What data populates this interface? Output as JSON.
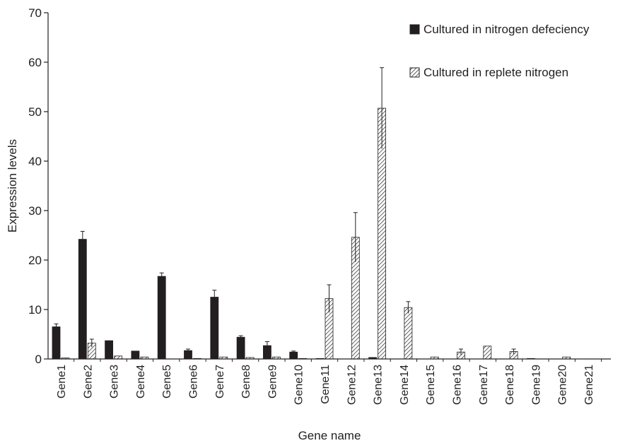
{
  "chart_data": {
    "type": "bar",
    "title": "",
    "xlabel": "Gene name",
    "ylabel": "Expression levels",
    "ylim": [
      0,
      70
    ],
    "yticks": [
      0,
      10,
      20,
      30,
      40,
      50,
      60,
      70
    ],
    "grid": false,
    "legend_position": "top-right",
    "categories": [
      "Gene1",
      "Gene2",
      "Gene3",
      "Gene4",
      "Gene5",
      "Gene6",
      "Gene7",
      "Gene8",
      "Gene9",
      "Gene10",
      "Gene11",
      "Gene12",
      "Gene13",
      "Gene14",
      "Gene15",
      "Gene16",
      "Gene17",
      "Gene18",
      "Gene19",
      "Gene20",
      "Gene21"
    ],
    "series": [
      {
        "name": "Cultured in nitrogen defeciency",
        "style": "solid",
        "color": "#231f20",
        "values": [
          6.5,
          24.2,
          3.7,
          1.6,
          16.7,
          1.7,
          12.5,
          4.4,
          2.7,
          1.4,
          0.1,
          0,
          0.3,
          0,
          0,
          0,
          0,
          0,
          0.1,
          0,
          0
        ],
        "errors": [
          0.6,
          1.6,
          0,
          0,
          0.7,
          0.3,
          1.4,
          0.3,
          0.8,
          0.2,
          0,
          0,
          0,
          0,
          0,
          0,
          0,
          0,
          0,
          0,
          0
        ]
      },
      {
        "name": "Cultured in replete nitrogen",
        "style": "hatched",
        "color": "#231f20",
        "values": [
          0.2,
          3.2,
          0.6,
          0.4,
          0,
          0.1,
          0.4,
          0.3,
          0.4,
          0.1,
          12.2,
          24.6,
          50.7,
          10.4,
          0.4,
          1.4,
          2.6,
          1.5,
          0,
          0.4,
          0
        ],
        "errors": [
          0,
          0.8,
          0,
          0,
          0,
          0,
          0,
          0,
          0,
          0,
          2.8,
          5.0,
          8.2,
          1.2,
          0,
          0.6,
          0,
          0.5,
          0,
          0,
          0
        ]
      }
    ]
  }
}
